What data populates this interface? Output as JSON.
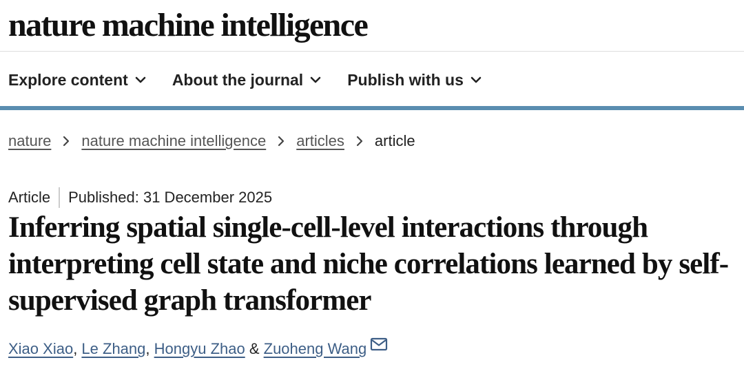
{
  "masthead": {
    "title": "nature machine intelligence"
  },
  "nav": {
    "items": [
      {
        "label": "Explore content",
        "icon": "chevron-down-icon"
      },
      {
        "label": "About the journal",
        "icon": "chevron-down-icon"
      },
      {
        "label": "Publish with us",
        "icon": "chevron-down-icon"
      }
    ]
  },
  "breadcrumb": {
    "items": [
      "nature",
      "nature machine intelligence",
      "articles"
    ],
    "current": "article"
  },
  "article": {
    "type": "Article",
    "published": "Published: 31 December 2025",
    "title": "Inferring spatial single-cell-level interactions through interpreting cell state and niche correlations learned by self-supervised graph transformer",
    "authors": [
      "Xiao Xiao",
      "Le Zhang",
      "Hongyu Zhao",
      "Zuoheng Wang"
    ],
    "author_separators": [
      ", ",
      ", ",
      " & "
    ]
  },
  "colors": {
    "accent_rule": "#5a8db0",
    "link": "#3d5e86"
  }
}
